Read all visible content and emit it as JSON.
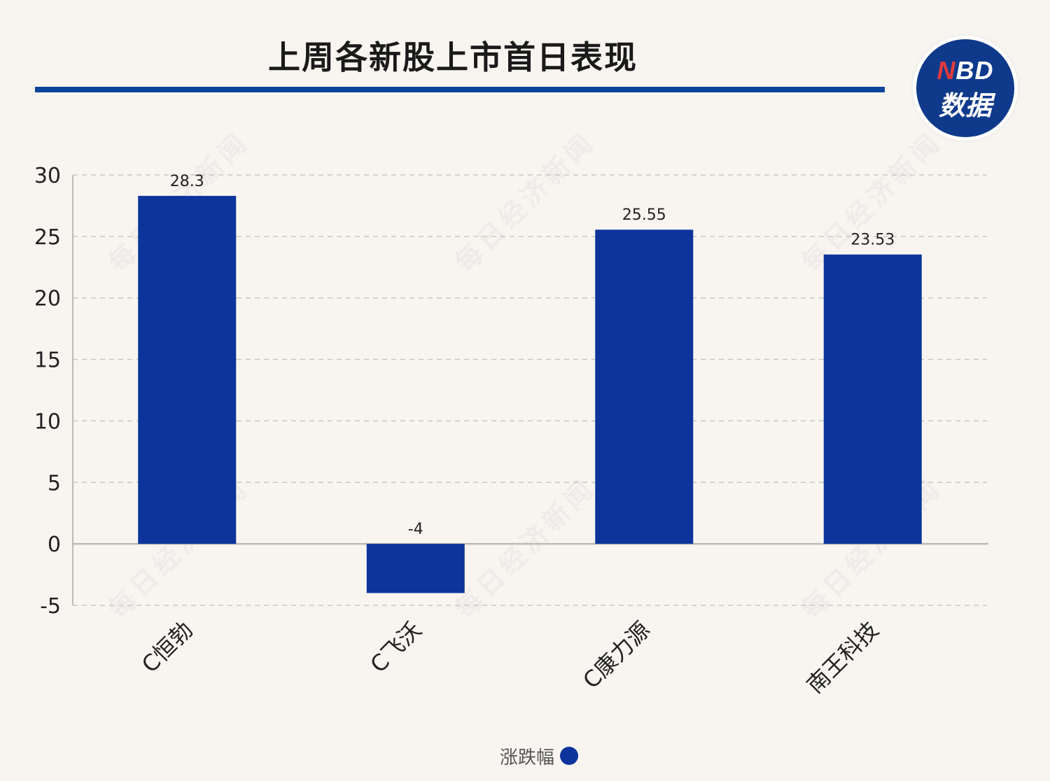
{
  "header": {
    "title": "上周各新股上市首日表现"
  },
  "logo": {
    "line1_n": "N",
    "line1_rest": "BD",
    "line2": "数据"
  },
  "watermark": "每日经济新闻",
  "legend": {
    "label": "涨跌幅"
  },
  "colors": {
    "bar": "#0d349b",
    "accent_rule": "#0d449b",
    "grid": "#c9c6c1",
    "axis": "#bdbab5"
  },
  "chart_data": {
    "type": "bar",
    "categories": [
      "C恒勃",
      "C飞沃",
      "C康力源",
      "南王科技"
    ],
    "series": [
      {
        "name": "涨跌幅",
        "values": [
          28.3,
          -4,
          25.55,
          23.53
        ]
      }
    ],
    "data_labels": [
      "28.3",
      "-4",
      "25.55",
      "23.53"
    ],
    "ylim": [
      -5,
      30
    ],
    "yticks": [
      -5,
      0,
      5,
      10,
      15,
      20,
      25,
      30
    ],
    "grid": true,
    "legend_position": "bottom-center"
  }
}
